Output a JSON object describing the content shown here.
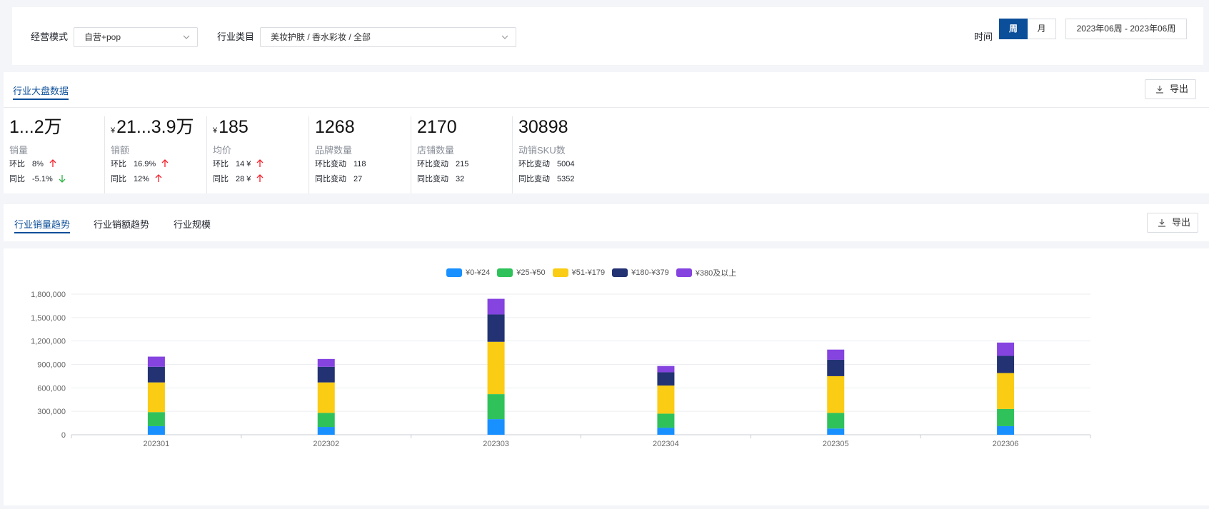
{
  "filters": {
    "mode_label": "经营模式",
    "mode_value": "自营+pop",
    "category_label": "行业类目",
    "category_value": "美妆护肤 / 香水彩妆 / 全部",
    "time_label": "时间",
    "period_week": "周",
    "period_month": "月",
    "date_range": "2023年06周 - 2023年06周"
  },
  "overview": {
    "tab": "行业大盘数据",
    "export": "导出",
    "stats": [
      {
        "value": "1...2万",
        "currency": "",
        "name": "销量",
        "r1_label": "环比",
        "r1_value": "8%",
        "r1_dir": "up",
        "r2_label": "同比",
        "r2_value": "-5.1%",
        "r2_dir": "down"
      },
      {
        "value": "21...3.9万",
        "currency": "¥",
        "name": "销额",
        "r1_label": "环比",
        "r1_value": "16.9%",
        "r1_dir": "up",
        "r2_label": "同比",
        "r2_value": "12%",
        "r2_dir": "up"
      },
      {
        "value": "185",
        "currency": "¥",
        "name": "均价",
        "r1_label": "环比",
        "r1_value": "14 ¥",
        "r1_dir": "up",
        "r2_label": "同比",
        "r2_value": "28 ¥",
        "r2_dir": "up"
      },
      {
        "value": "1268",
        "currency": "",
        "name": "品牌数量",
        "r1_label": "环比变动",
        "r1_value": "118",
        "r1_dir": "",
        "r2_label": "同比变动",
        "r2_value": "27",
        "r2_dir": ""
      },
      {
        "value": "2170",
        "currency": "",
        "name": "店铺数量",
        "r1_label": "环比变动",
        "r1_value": "215",
        "r1_dir": "",
        "r2_label": "同比变动",
        "r2_value": "32",
        "r2_dir": ""
      },
      {
        "value": "30898",
        "currency": "",
        "name": "动销SKU数",
        "r1_label": "环比变动",
        "r1_value": "5004",
        "r1_dir": "",
        "r2_label": "同比变动",
        "r2_value": "5352",
        "r2_dir": ""
      }
    ]
  },
  "trend_tabs": {
    "items": [
      "行业销量趋势",
      "行业销额趋势",
      "行业规模"
    ],
    "export": "导出"
  },
  "colors": {
    "accent": "#0b4e99",
    "up": "#f5222d",
    "down": "#2fb344"
  },
  "chart_data": {
    "type": "bar",
    "stacked": true,
    "categories": [
      "202301",
      "202302",
      "202303",
      "202304",
      "202305",
      "202306"
    ],
    "series": [
      {
        "name": "¥0-¥24",
        "color": "#1890ff",
        "values": [
          110000,
          100000,
          200000,
          90000,
          80000,
          110000
        ]
      },
      {
        "name": "¥25-¥50",
        "color": "#2fc25b",
        "values": [
          180000,
          180000,
          320000,
          180000,
          200000,
          220000
        ]
      },
      {
        "name": "¥51-¥179",
        "color": "#facc14",
        "values": [
          380000,
          390000,
          670000,
          360000,
          470000,
          460000
        ]
      },
      {
        "name": "¥180-¥379",
        "color": "#223273",
        "values": [
          200000,
          200000,
          350000,
          170000,
          210000,
          220000
        ]
      },
      {
        "name": "¥380及以上",
        "color": "#8543e0",
        "values": [
          130000,
          100000,
          200000,
          80000,
          130000,
          170000
        ]
      }
    ],
    "yticks": [
      "0",
      "300,000",
      "600,000",
      "900,000",
      "1,200,000",
      "1,500,000",
      "1,800,000"
    ],
    "ylim": [
      0,
      1800000
    ],
    "grid": true,
    "legend": "top-center"
  }
}
